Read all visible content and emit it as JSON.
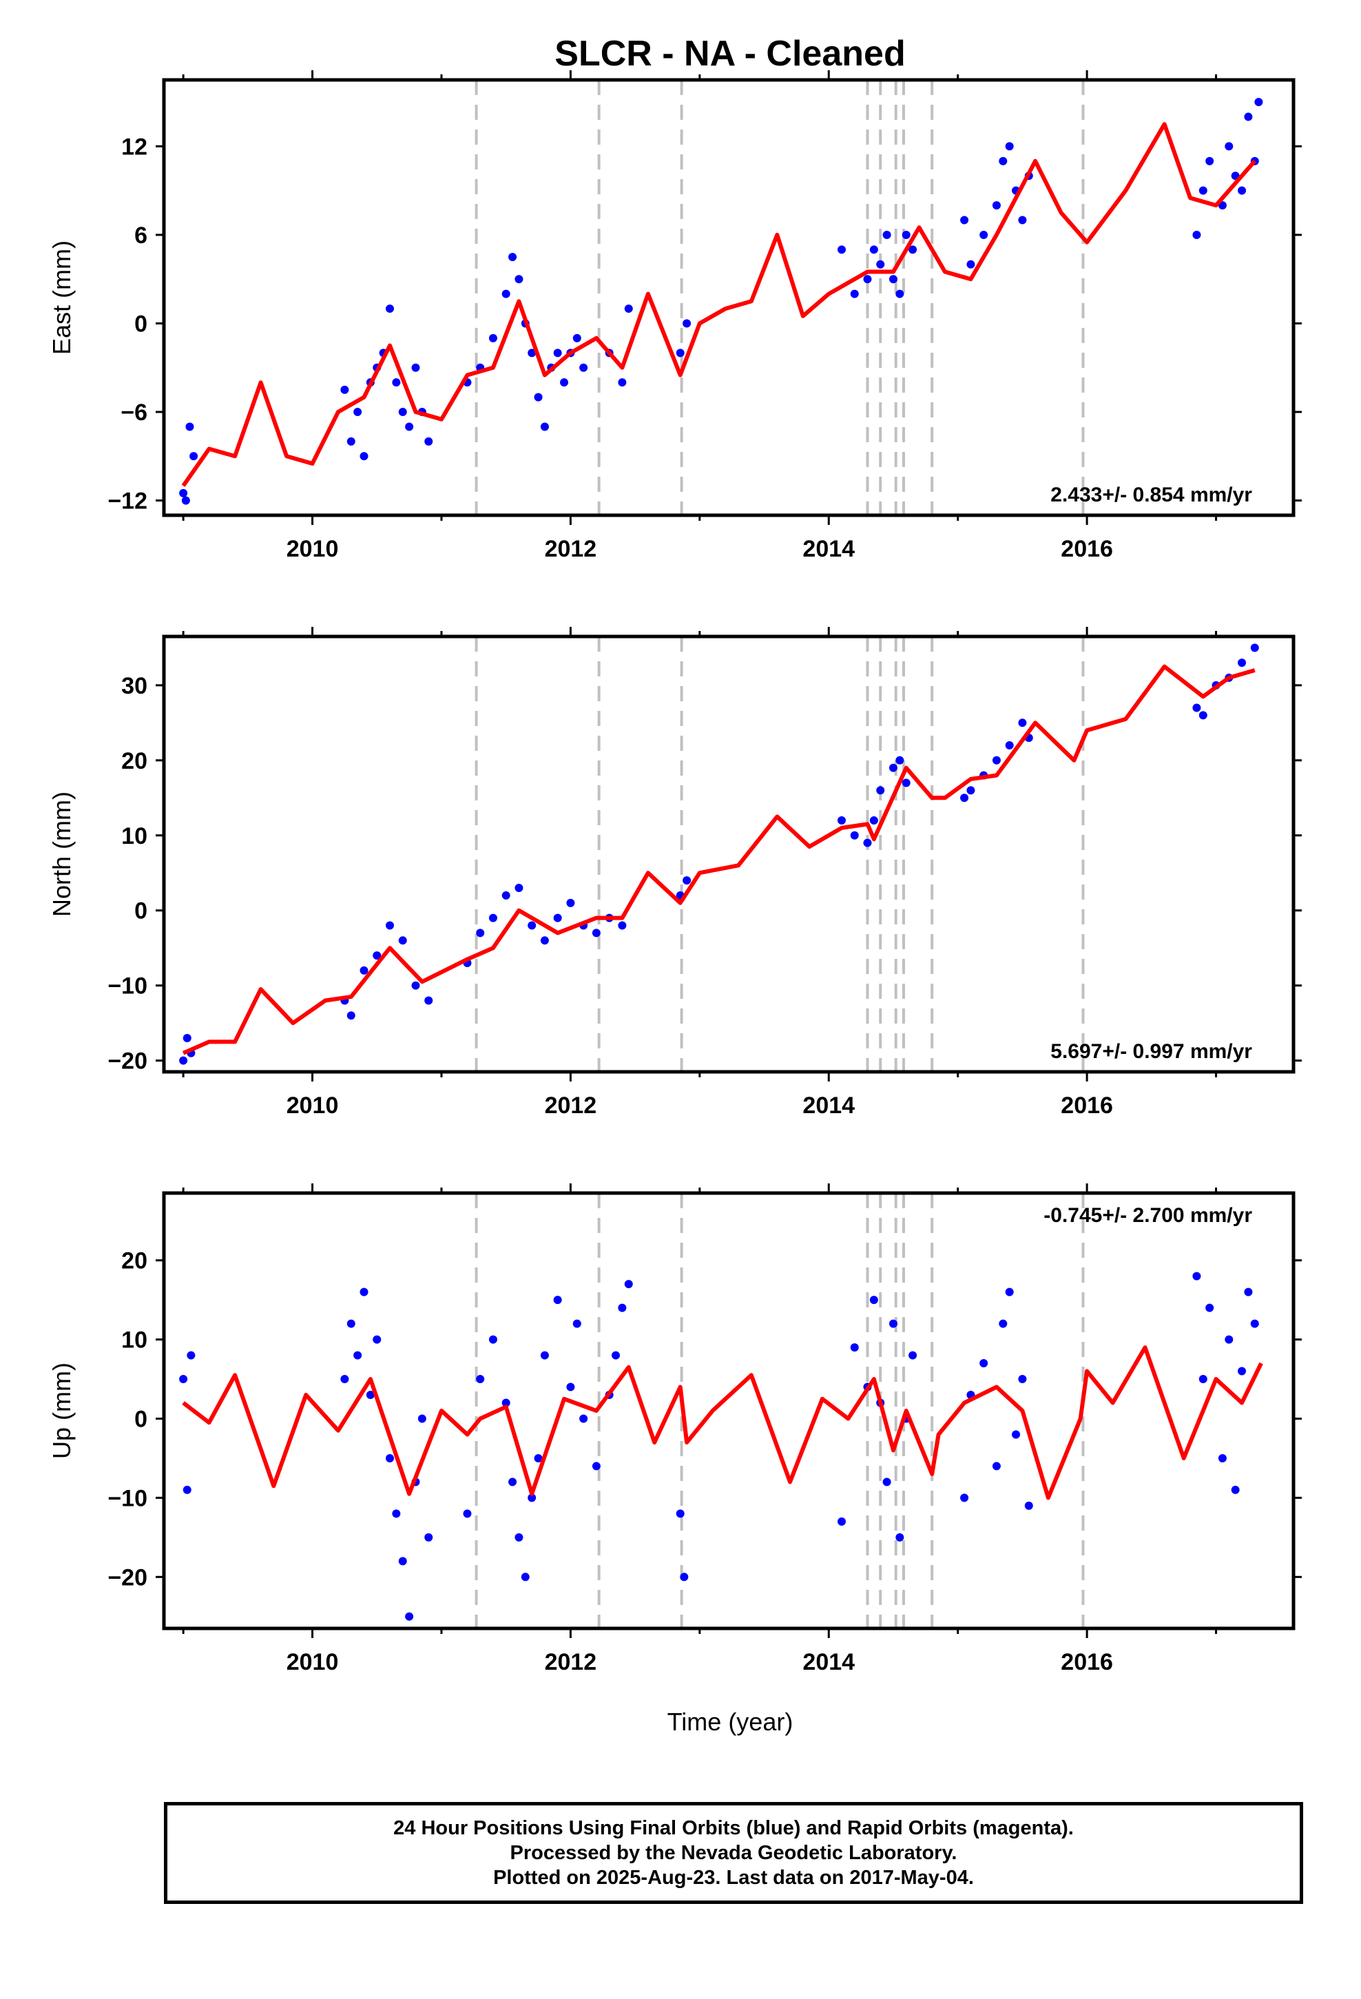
{
  "chart_data": {
    "title": "SLCR  - NA - Cleaned",
    "xlabel": "Time (year)",
    "xlim": [
      2008.85,
      2017.6
    ],
    "xticks": [
      2010,
      2012,
      2014,
      2016
    ],
    "colors": {
      "data": "#0000ff",
      "model": "#ff0000",
      "breaks": "#c0c0c0",
      "frame": "#000000"
    },
    "offsets": [
      2011.27,
      2012.22,
      2012.86,
      2014.3,
      2014.4,
      2014.52,
      2014.58,
      2014.8,
      2015.97
    ],
    "panels": [
      {
        "type": "scatter",
        "name": "east",
        "ylabel": "East (mm)",
        "ylim": [
          -13,
          16.5
        ],
        "yticks": [
          -12,
          -6,
          0,
          6,
          12
        ],
        "rate": "2.433+/- 0.854 mm/yr",
        "rate_position": "bottom-right",
        "model": {
          "x": [
            2009.0,
            2009.2,
            2009.4,
            2009.6,
            2009.8,
            2010.0,
            2010.2,
            2010.4,
            2010.6,
            2010.8,
            2011.0,
            2011.2,
            2011.4,
            2011.6,
            2011.8,
            2012.0,
            2012.2,
            2012.4,
            2012.6,
            2012.85,
            2013.0,
            2013.2,
            2013.4,
            2013.6,
            2013.8,
            2014.0,
            2014.3,
            2014.5,
            2014.7,
            2014.9,
            2015.1,
            2015.3,
            2015.6,
            2015.8,
            2016.0,
            2016.3,
            2016.6,
            2016.8,
            2017.0,
            2017.3
          ],
          "y": [
            -11,
            -8.5,
            -9,
            -4,
            -9,
            -9.5,
            -6,
            -5,
            -1.5,
            -6,
            -6.5,
            -3.5,
            -3,
            1.5,
            -3.5,
            -2,
            -1,
            -3,
            2,
            -3.5,
            0,
            1,
            1.5,
            6,
            0.5,
            2,
            3.5,
            3.5,
            6.5,
            3.5,
            3,
            6,
            11,
            7.5,
            5.5,
            9,
            13.5,
            8.5,
            8,
            11
          ]
        },
        "points": {
          "x": [
            2009.0,
            2009.02,
            2009.05,
            2009.08,
            2010.25,
            2010.3,
            2010.35,
            2010.4,
            2010.45,
            2010.5,
            2010.55,
            2010.6,
            2010.65,
            2010.7,
            2010.75,
            2010.8,
            2010.85,
            2010.9,
            2011.2,
            2011.3,
            2011.4,
            2011.5,
            2011.55,
            2011.6,
            2011.65,
            2011.7,
            2011.75,
            2011.8,
            2011.85,
            2011.9,
            2011.95,
            2012.0,
            2012.05,
            2012.1,
            2012.3,
            2012.4,
            2012.45,
            2012.85,
            2012.9,
            2014.1,
            2014.2,
            2014.3,
            2014.35,
            2014.4,
            2014.45,
            2014.5,
            2014.55,
            2014.6,
            2014.65,
            2015.05,
            2015.1,
            2015.2,
            2015.3,
            2015.35,
            2015.4,
            2015.45,
            2015.5,
            2015.55,
            2016.85,
            2016.9,
            2016.95,
            2017.05,
            2017.1,
            2017.15,
            2017.2,
            2017.25,
            2017.3,
            2017.33
          ],
          "y": [
            -11.5,
            -12,
            -7,
            -9,
            -4.5,
            -8,
            -6,
            -9,
            -4,
            -3,
            -2,
            1,
            -4,
            -6,
            -7,
            -3,
            -6,
            -8,
            -4,
            -3,
            -1,
            2,
            4.5,
            3,
            0,
            -2,
            -5,
            -7,
            -3,
            -2,
            -4,
            -2,
            -1,
            -3,
            -2,
            -4,
            1,
            -2,
            0,
            5,
            2,
            3,
            5,
            4,
            6,
            3,
            2,
            6,
            5,
            7,
            4,
            6,
            8,
            11,
            12,
            9,
            7,
            10,
            6,
            9,
            11,
            8,
            12,
            10,
            9,
            14,
            11,
            15
          ]
        }
      },
      {
        "type": "scatter",
        "name": "north",
        "ylabel": "North (mm)",
        "ylim": [
          -21.5,
          36.5
        ],
        "yticks": [
          -20,
          -10,
          0,
          10,
          20,
          30
        ],
        "rate": "5.697+/- 0.997 mm/yr",
        "rate_position": "bottom-right",
        "model": {
          "x": [
            2009.0,
            2009.2,
            2009.4,
            2009.6,
            2009.85,
            2010.1,
            2010.3,
            2010.6,
            2010.85,
            2011.2,
            2011.4,
            2011.6,
            2011.9,
            2012.2,
            2012.4,
            2012.6,
            2012.85,
            2013.0,
            2013.3,
            2013.6,
            2013.85,
            2014.1,
            2014.3,
            2014.35,
            2014.6,
            2014.8,
            2014.9,
            2015.1,
            2015.3,
            2015.6,
            2015.9,
            2016.0,
            2016.3,
            2016.6,
            2016.9,
            2017.1,
            2017.3
          ],
          "y": [
            -19,
            -17.5,
            -17.5,
            -10.5,
            -15,
            -12,
            -11.5,
            -5,
            -9.5,
            -6.5,
            -5,
            0,
            -3,
            -1,
            -1,
            5,
            1,
            5,
            6,
            12.5,
            8.5,
            11,
            11.5,
            9.5,
            19,
            15,
            15,
            17.5,
            18,
            25,
            20,
            24,
            25.5,
            32.5,
            28.5,
            31,
            32
          ]
        },
        "points": {
          "x": [
            2009.0,
            2009.03,
            2009.06,
            2010.25,
            2010.3,
            2010.4,
            2010.5,
            2010.6,
            2010.7,
            2010.8,
            2010.9,
            2011.2,
            2011.3,
            2011.4,
            2011.5,
            2011.6,
            2011.7,
            2011.8,
            2011.9,
            2012.0,
            2012.1,
            2012.2,
            2012.3,
            2012.4,
            2012.85,
            2012.9,
            2014.1,
            2014.2,
            2014.3,
            2014.35,
            2014.4,
            2014.5,
            2014.55,
            2014.6,
            2015.05,
            2015.1,
            2015.2,
            2015.3,
            2015.4,
            2015.5,
            2015.55,
            2016.85,
            2016.9,
            2017.0,
            2017.1,
            2017.2,
            2017.3
          ],
          "y": [
            -20,
            -17,
            -19,
            -12,
            -14,
            -8,
            -6,
            -2,
            -4,
            -10,
            -12,
            -7,
            -3,
            -1,
            2,
            3,
            -2,
            -4,
            -1,
            1,
            -2,
            -3,
            -1,
            -2,
            2,
            4,
            12,
            10,
            9,
            12,
            16,
            19,
            20,
            17,
            15,
            16,
            18,
            20,
            22,
            25,
            23,
            27,
            26,
            30,
            31,
            33,
            35
          ]
        }
      },
      {
        "type": "scatter",
        "name": "up",
        "ylabel": "Up (mm)",
        "ylim": [
          -26.5,
          28.5
        ],
        "yticks": [
          -20,
          -10,
          0,
          10,
          20
        ],
        "rate": "-0.745+/- 2.700 mm/yr",
        "rate_position": "top-right",
        "model": {
          "x": [
            2009.0,
            2009.2,
            2009.4,
            2009.7,
            2009.95,
            2010.2,
            2010.45,
            2010.75,
            2011.0,
            2011.2,
            2011.3,
            2011.5,
            2011.7,
            2011.95,
            2012.2,
            2012.45,
            2012.65,
            2012.85,
            2012.9,
            2013.1,
            2013.4,
            2013.7,
            2013.95,
            2014.15,
            2014.35,
            2014.5,
            2014.6,
            2014.8,
            2014.85,
            2015.05,
            2015.3,
            2015.5,
            2015.7,
            2015.95,
            2016.0,
            2016.2,
            2016.45,
            2016.75,
            2017.0,
            2017.2,
            2017.35
          ],
          "y": [
            2,
            -0.5,
            5.5,
            -8.5,
            3,
            -1.5,
            5,
            -9.5,
            1,
            -2,
            0,
            1.5,
            -9.5,
            2.5,
            1,
            6.5,
            -3,
            4,
            -3,
            1,
            5.5,
            -8,
            2.5,
            0,
            5,
            -4,
            1,
            -7,
            -2,
            2,
            4,
            1,
            -10,
            0,
            6,
            2,
            9,
            -5,
            5,
            2,
            7
          ]
        },
        "points": {
          "x": [
            2009.0,
            2009.03,
            2009.06,
            2010.25,
            2010.3,
            2010.35,
            2010.4,
            2010.45,
            2010.5,
            2010.6,
            2010.65,
            2010.7,
            2010.75,
            2010.8,
            2010.85,
            2010.9,
            2011.2,
            2011.3,
            2011.4,
            2011.5,
            2011.55,
            2011.6,
            2011.65,
            2011.7,
            2011.75,
            2011.8,
            2011.9,
            2012.0,
            2012.05,
            2012.1,
            2012.2,
            2012.3,
            2012.35,
            2012.4,
            2012.45,
            2012.85,
            2012.88,
            2014.1,
            2014.2,
            2014.3,
            2014.35,
            2014.4,
            2014.45,
            2014.5,
            2014.55,
            2014.6,
            2014.65,
            2015.05,
            2015.1,
            2015.2,
            2015.3,
            2015.35,
            2015.4,
            2015.45,
            2015.5,
            2015.55,
            2016.85,
            2016.9,
            2016.95,
            2017.05,
            2017.1,
            2017.15,
            2017.2,
            2017.25,
            2017.3
          ],
          "y": [
            5,
            -9,
            8,
            5,
            12,
            8,
            16,
            3,
            10,
            -5,
            -12,
            -18,
            -25,
            -8,
            0,
            -15,
            -12,
            5,
            10,
            2,
            -8,
            -15,
            -20,
            -10,
            -5,
            8,
            15,
            4,
            12,
            0,
            -6,
            3,
            8,
            14,
            17,
            -12,
            -20,
            -13,
            9,
            4,
            15,
            2,
            -8,
            12,
            -15,
            0,
            8,
            -10,
            3,
            7,
            -6,
            12,
            16,
            -2,
            5,
            -11,
            18,
            5,
            14,
            -5,
            10,
            -9,
            6,
            16,
            12
          ]
        }
      }
    ]
  },
  "footer": {
    "line1": "24 Hour Positions Using Final Orbits (blue) and Rapid Orbits (magenta).",
    "line2": "Processed by the Nevada Geodetic Laboratory.",
    "line3": "Plotted on 2025-Aug-23. Last data on 2017-May-04."
  }
}
